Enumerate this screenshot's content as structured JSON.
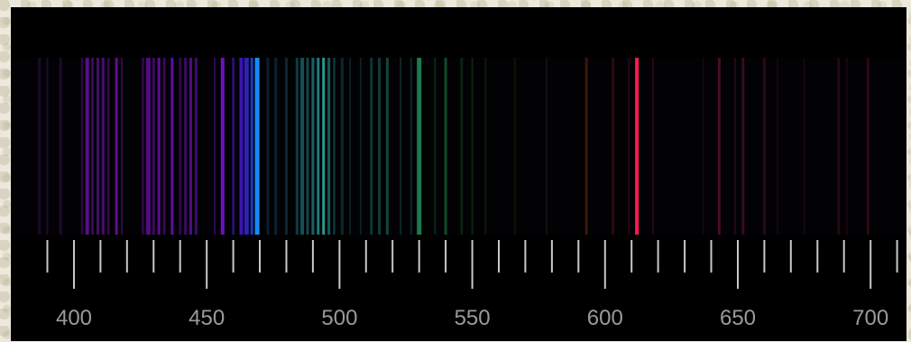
{
  "chart_data": {
    "type": "spectrum",
    "x_unit": "nm",
    "xlim": [
      385,
      716
    ],
    "tick_labels": [
      "400",
      "450",
      "500",
      "550",
      "600",
      "650",
      "700"
    ],
    "major_ticks": [
      400,
      450,
      500,
      550,
      600,
      650,
      700
    ],
    "minor_tick_step": 10,
    "lines": [
      {
        "wl": 387,
        "color": "#1a0a2a",
        "w": 3
      },
      {
        "wl": 390,
        "color": "#1c0b2c",
        "w": 2
      },
      {
        "wl": 395,
        "color": "#1d0a2e",
        "w": 3
      },
      {
        "wl": 403,
        "color": "#300a4a",
        "w": 2
      },
      {
        "wl": 405,
        "color": "#5a0e8a",
        "w": 4
      },
      {
        "wl": 407,
        "color": "#3a0a5a",
        "w": 3
      },
      {
        "wl": 409,
        "color": "#40105f",
        "w": 3
      },
      {
        "wl": 411,
        "color": "#4a0c70",
        "w": 3
      },
      {
        "wl": 413,
        "color": "#2e0a45",
        "w": 3
      },
      {
        "wl": 416,
        "color": "#5c0f8e",
        "w": 3
      },
      {
        "wl": 418,
        "color": "#300a4a",
        "w": 2
      },
      {
        "wl": 426,
        "color": "#2a083f",
        "w": 3
      },
      {
        "wl": 428,
        "color": "#4f0d7c",
        "w": 5
      },
      {
        "wl": 430,
        "color": "#3b0a5e",
        "w": 3
      },
      {
        "wl": 432,
        "color": "#5a0f8d",
        "w": 3
      },
      {
        "wl": 434,
        "color": "#320a52",
        "w": 3
      },
      {
        "wl": 437,
        "color": "#5d10a0",
        "w": 3
      },
      {
        "wl": 440,
        "color": "#2c0848",
        "w": 3
      },
      {
        "wl": 442,
        "color": "#3a0a62",
        "w": 3
      },
      {
        "wl": 444,
        "color": "#4c0d84",
        "w": 3
      },
      {
        "wl": 446,
        "color": "#3e0b6b",
        "w": 3
      },
      {
        "wl": 453,
        "color": "#2a0a55",
        "w": 2
      },
      {
        "wl": 456,
        "color": "#6a12c0",
        "w": 4
      },
      {
        "wl": 460,
        "color": "#251070",
        "w": 3
      },
      {
        "wl": 463,
        "color": "#3a14b4",
        "w": 4
      },
      {
        "wl": 465,
        "color": "#2e20b0",
        "w": 5
      },
      {
        "wl": 467,
        "color": "#1c3ac0",
        "w": 3
      },
      {
        "wl": 469,
        "color": "#1a8aff",
        "w": 5
      },
      {
        "wl": 473,
        "color": "#0b1e30",
        "w": 3
      },
      {
        "wl": 476,
        "color": "#0a2030",
        "w": 3
      },
      {
        "wl": 480,
        "color": "#0c2630",
        "w": 3
      },
      {
        "wl": 484,
        "color": "#0f3a40",
        "w": 3
      },
      {
        "wl": 486,
        "color": "#155055",
        "w": 4
      },
      {
        "wl": 488,
        "color": "#134548",
        "w": 3
      },
      {
        "wl": 490,
        "color": "#1a6068",
        "w": 3
      },
      {
        "wl": 492,
        "color": "#1f7a78",
        "w": 3
      },
      {
        "wl": 494,
        "color": "#2a9a90",
        "w": 3
      },
      {
        "wl": 496,
        "color": "#155a55",
        "w": 3
      },
      {
        "wl": 498,
        "color": "#0f4040",
        "w": 2
      },
      {
        "wl": 501,
        "color": "#0a2a2a",
        "w": 3
      },
      {
        "wl": 504,
        "color": "#0a2025",
        "w": 2
      },
      {
        "wl": 508,
        "color": "#0a2022",
        "w": 2
      },
      {
        "wl": 512,
        "color": "#0e3530",
        "w": 3
      },
      {
        "wl": 515,
        "color": "#103a32",
        "w": 3
      },
      {
        "wl": 518,
        "color": "#12453a",
        "w": 3
      },
      {
        "wl": 523,
        "color": "#0c2a22",
        "w": 2
      },
      {
        "wl": 527,
        "color": "#0c2a20",
        "w": 2
      },
      {
        "wl": 530,
        "color": "#1f7a4e",
        "w": 5
      },
      {
        "wl": 536,
        "color": "#0c2818",
        "w": 2
      },
      {
        "wl": 540,
        "color": "#124a28",
        "w": 3
      },
      {
        "wl": 546,
        "color": "#0b2212",
        "w": 3
      },
      {
        "wl": 550,
        "color": "#0c2410",
        "w": 2
      },
      {
        "wl": 555,
        "color": "#0a1a0c",
        "w": 2
      },
      {
        "wl": 566,
        "color": "#0a1408",
        "w": 2
      },
      {
        "wl": 578,
        "color": "#0c120a",
        "w": 2
      },
      {
        "wl": 593,
        "color": "#3a1608",
        "w": 3
      },
      {
        "wl": 603,
        "color": "#2a0a0a",
        "w": 3
      },
      {
        "wl": 609,
        "color": "#250810",
        "w": 2
      },
      {
        "wl": 612,
        "color": "#ff1a55",
        "w": 4
      },
      {
        "wl": 618,
        "color": "#2a0814",
        "w": 2
      },
      {
        "wl": 637,
        "color": "#140610",
        "w": 2
      },
      {
        "wl": 643,
        "color": "#4a0c22",
        "w": 3
      },
      {
        "wl": 649,
        "color": "#200818",
        "w": 2
      },
      {
        "wl": 652,
        "color": "#3a0a20",
        "w": 3
      },
      {
        "wl": 660,
        "color": "#2a0818",
        "w": 3
      },
      {
        "wl": 665,
        "color": "#180610",
        "w": 2
      },
      {
        "wl": 675,
        "color": "#160610",
        "w": 2
      },
      {
        "wl": 688,
        "color": "#250812",
        "w": 3
      },
      {
        "wl": 691,
        "color": "#1a060e",
        "w": 2
      },
      {
        "wl": 699,
        "color": "#2c0814",
        "w": 3
      },
      {
        "wl": 714,
        "color": "#30081a",
        "w": 3
      }
    ]
  }
}
